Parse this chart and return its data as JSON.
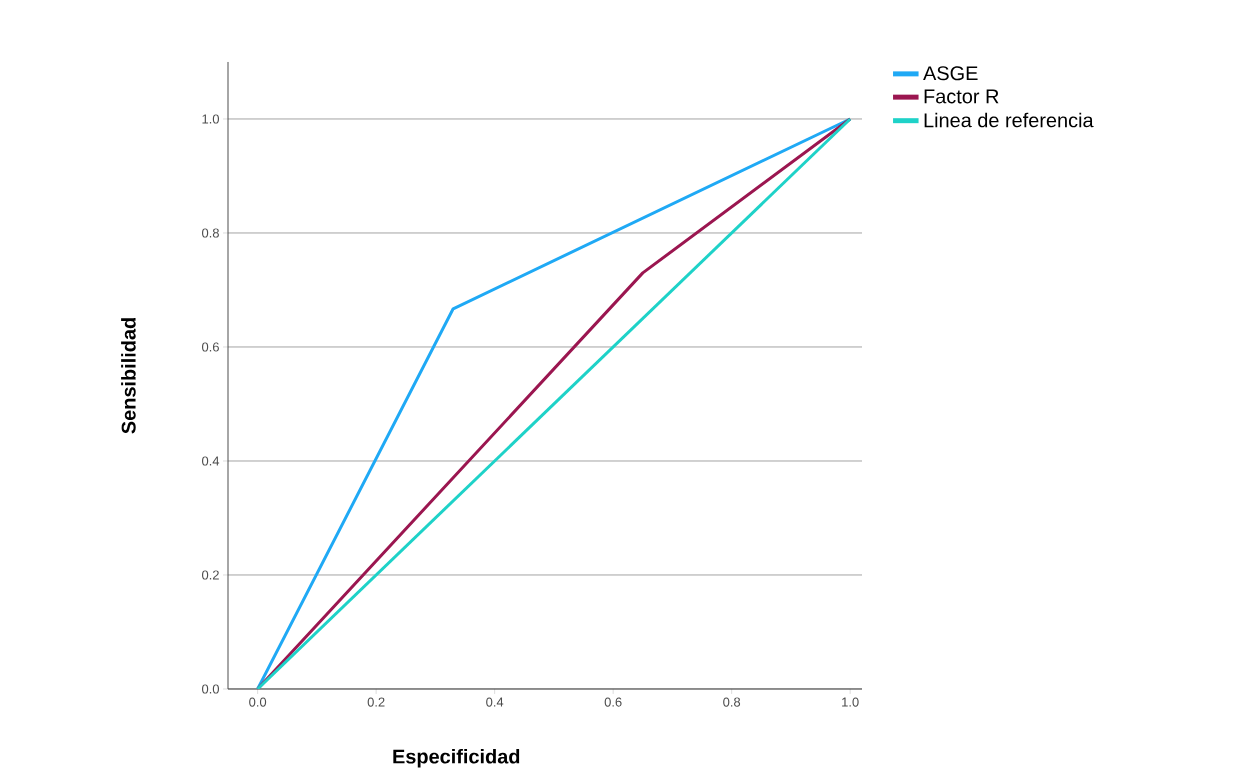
{
  "chart_data": {
    "type": "line",
    "xlabel": "Especificidad",
    "ylabel": "Sensibilidad",
    "series": [
      {
        "name": "ASGE",
        "color": "#1fa9f5",
        "x": [
          0,
          0.33,
          1
        ],
        "values": [
          0,
          0.667,
          1
        ]
      },
      {
        "name": "Factor R",
        "color": "#9b1650",
        "x": [
          0,
          0.65,
          1
        ],
        "values": [
          0,
          0.73,
          1
        ]
      },
      {
        "name": "Linea de referencia",
        "color": "#1ed2c8",
        "x": [
          0,
          1
        ],
        "values": [
          0,
          1
        ]
      }
    ],
    "xlim": [
      -0.05,
      1.02
    ],
    "ylim": [
      0,
      1.1
    ],
    "xticks": [
      {
        "value": 0,
        "label": "0.0"
      },
      {
        "value": 0.2,
        "label": "0.2"
      },
      {
        "value": 0.4,
        "label": "0.4"
      },
      {
        "value": 0.6,
        "label": "0.6"
      },
      {
        "value": 0.8,
        "label": "0.8"
      },
      {
        "value": 1,
        "label": "1.0"
      }
    ],
    "yticks": [
      {
        "value": 0,
        "label": "0.0"
      },
      {
        "value": 0.2,
        "label": "0.2"
      },
      {
        "value": 0.4,
        "label": "0.4"
      },
      {
        "value": 0.6,
        "label": "0.6"
      },
      {
        "value": 0.8,
        "label": "0.8"
      },
      {
        "value": 1,
        "label": "1.0"
      }
    ],
    "grid": "y",
    "legend": "top right",
    "marker": "none",
    "line_style": "solid"
  }
}
